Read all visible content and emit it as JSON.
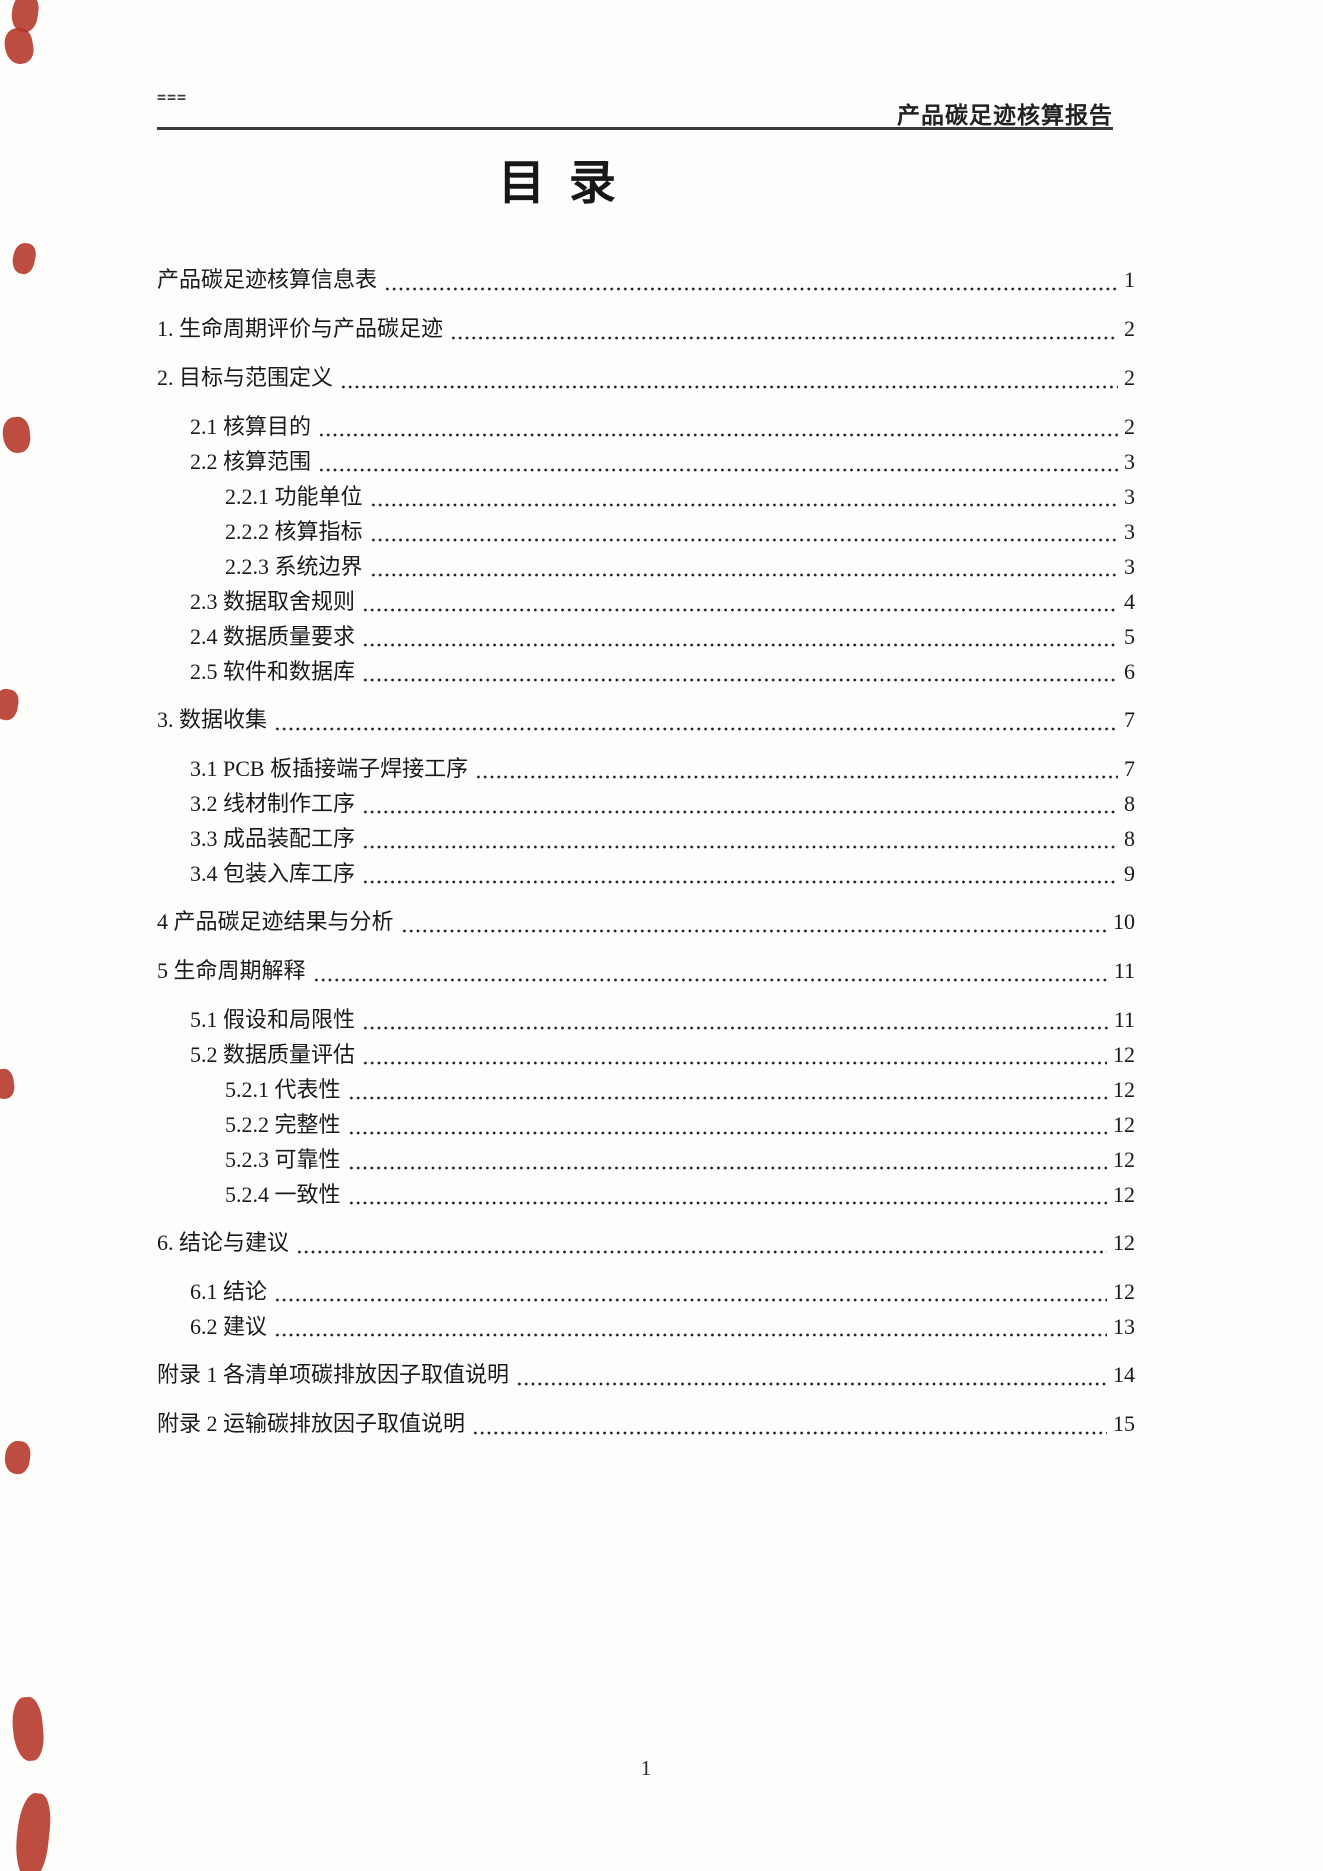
{
  "document": {
    "header": {
      "left_mark": "===",
      "title": "产品碳足迹核算报告"
    },
    "toc_title": "目 录",
    "footer_page_number": "1"
  },
  "toc": {
    "entries": [
      {
        "label": "产品碳足迹核算信息表",
        "page": "1",
        "level": 0
      },
      {
        "label": "1. 生命周期评价与产品碳足迹",
        "page": "2",
        "level": 0
      },
      {
        "label": "2. 目标与范围定义",
        "page": "2",
        "level": 0
      },
      {
        "label": "2.1 核算目的",
        "page": "2",
        "level": 1
      },
      {
        "label": "2.2 核算范围",
        "page": "3",
        "level": 1
      },
      {
        "label": "2.2.1 功能单位",
        "page": "3",
        "level": 2
      },
      {
        "label": "2.2.2 核算指标",
        "page": "3",
        "level": 2
      },
      {
        "label": "2.2.3 系统边界",
        "page": "3",
        "level": 2
      },
      {
        "label": "2.3 数据取舍规则",
        "page": "4",
        "level": 1
      },
      {
        "label": "2.4 数据质量要求",
        "page": "5",
        "level": 1
      },
      {
        "label": "2.5 软件和数据库",
        "page": "6",
        "level": 1
      },
      {
        "label": "3. 数据收集",
        "page": "7",
        "level": 0
      },
      {
        "label": "3.1 PCB 板插接端子焊接工序",
        "page": "7",
        "level": 1
      },
      {
        "label": "3.2 线材制作工序",
        "page": "8",
        "level": 1
      },
      {
        "label": "3.3 成品装配工序",
        "page": "8",
        "level": 1
      },
      {
        "label": "3.4 包装入库工序",
        "page": "9",
        "level": 1
      },
      {
        "label": "4 产品碳足迹结果与分析",
        "page": "10",
        "level": 0
      },
      {
        "label": "5 生命周期解释",
        "page": "11",
        "level": 0
      },
      {
        "label": "5.1 假设和局限性",
        "page": "11",
        "level": 1
      },
      {
        "label": "5.2 数据质量评估",
        "page": "12",
        "level": 1
      },
      {
        "label": "5.2.1 代表性",
        "page": "12",
        "level": 2
      },
      {
        "label": "5.2.2 完整性",
        "page": "12",
        "level": 2
      },
      {
        "label": "5.2.3 可靠性",
        "page": "12",
        "level": 2
      },
      {
        "label": "5.2.4 一致性",
        "page": "12",
        "level": 2
      },
      {
        "label": "6. 结论与建议",
        "page": "12",
        "level": 0
      },
      {
        "label": "6.1 结论",
        "page": "12",
        "level": 1
      },
      {
        "label": "6.2 建议",
        "page": "13",
        "level": 1
      },
      {
        "label": "附录 1 各清单项碳排放因子取值说明",
        "page": "14",
        "level": 0
      },
      {
        "label": "附录 2 运输碳排放因子取值说明",
        "page": "15",
        "level": 0
      }
    ]
  },
  "colors": {
    "text": "#1a1a1a",
    "rule": "#3a3a3a",
    "stamp_red": "#b43427"
  }
}
